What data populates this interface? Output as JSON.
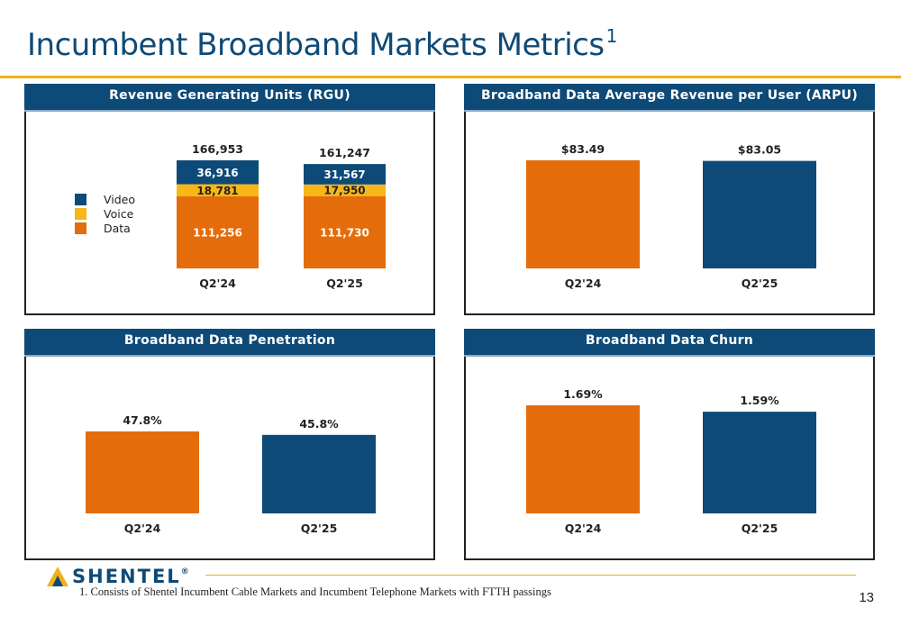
{
  "page": {
    "title": "Incumbent Broadband Markets Metrics",
    "title_superscript": "1",
    "footnote": "1.    Consists of Shentel Incumbent Cable Markets and Incumbent Telephone Markets with FTTH passings",
    "page_number": "13",
    "logo_text": "SHENTEL",
    "logo_mark": "®"
  },
  "colors": {
    "navy": "#0e4a77",
    "orange": "#e46c0a",
    "yellow": "#f7b719",
    "accent_rule": "#f2b01e"
  },
  "chart_data": [
    {
      "id": "rgu",
      "type": "bar",
      "stacked": true,
      "title": "Revenue Generating Units (RGU)",
      "categories": [
        "Q2'24",
        "Q2'25"
      ],
      "series": [
        {
          "name": "Data",
          "values": [
            111256,
            111730
          ],
          "labels": [
            "111,256",
            "111,730"
          ]
        },
        {
          "name": "Voice",
          "values": [
            18781,
            17950
          ],
          "labels": [
            "18,781",
            "17,950"
          ]
        },
        {
          "name": "Video",
          "values": [
            36916,
            31567
          ],
          "labels": [
            "36,916",
            "31,567"
          ]
        }
      ],
      "totals": [
        166953,
        161247
      ],
      "total_labels": [
        "166,953",
        "161,247"
      ],
      "legend": [
        "Video",
        "Voice",
        "Data"
      ],
      "legend_position": "left"
    },
    {
      "id": "arpu",
      "type": "bar",
      "title": "Broadband Data Average Revenue per User (ARPU)",
      "categories": [
        "Q2'24",
        "Q2'25"
      ],
      "values": [
        83.49,
        83.05
      ],
      "value_labels": [
        "$83.49",
        "$83.05"
      ]
    },
    {
      "id": "penetration",
      "type": "bar",
      "title": "Broadband Data Penetration",
      "categories": [
        "Q2'24",
        "Q2'25"
      ],
      "values": [
        47.8,
        45.8
      ],
      "value_labels": [
        "47.8%",
        "45.8%"
      ]
    },
    {
      "id": "churn",
      "type": "bar",
      "title": "Broadband Data Churn",
      "categories": [
        "Q2'24",
        "Q2'25"
      ],
      "values": [
        1.69,
        1.59
      ],
      "value_labels": [
        "1.69%",
        "1.59%"
      ]
    }
  ]
}
